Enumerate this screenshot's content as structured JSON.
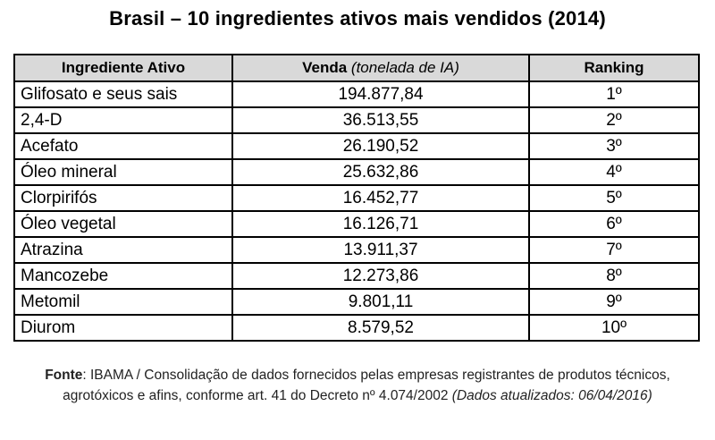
{
  "title": "Brasil – 10 ingredientes ativos mais vendidos (2014)",
  "table": {
    "header": [
      "Ingrediente Ativo",
      "Venda",
      "(tonelada de IA)",
      "Ranking"
    ],
    "rows": [
      [
        "Glifosato e seus sais",
        "194.877,84",
        "1º"
      ],
      [
        "2,4-D",
        "36.513,55",
        "2º"
      ],
      [
        "Acefato",
        "26.190,52",
        "3º"
      ],
      [
        "Óleo mineral",
        "25.632,86",
        "4º"
      ],
      [
        "Clorpirifós",
        "16.452,77",
        "5º"
      ],
      [
        "Óleo vegetal",
        "16.126,71",
        "6º"
      ],
      [
        "Atrazina",
        "13.911,37",
        "7º"
      ],
      [
        "Mancozebe",
        "12.273,86",
        "8º"
      ],
      [
        "Metomil",
        "9.801,11",
        "9º"
      ],
      [
        "Diurom",
        "8.579,52",
        "10º"
      ]
    ]
  },
  "source": {
    "label": "Fonte",
    "text": "IBAMA / Consolidação de dados fornecidos pelas empresas registrantes de produtos técnicos, agrotóxicos e afins, conforme art. 41 do Decreto nº 4.074/2002",
    "note": "(Dados atualizados: 06/04/2016)"
  }
}
